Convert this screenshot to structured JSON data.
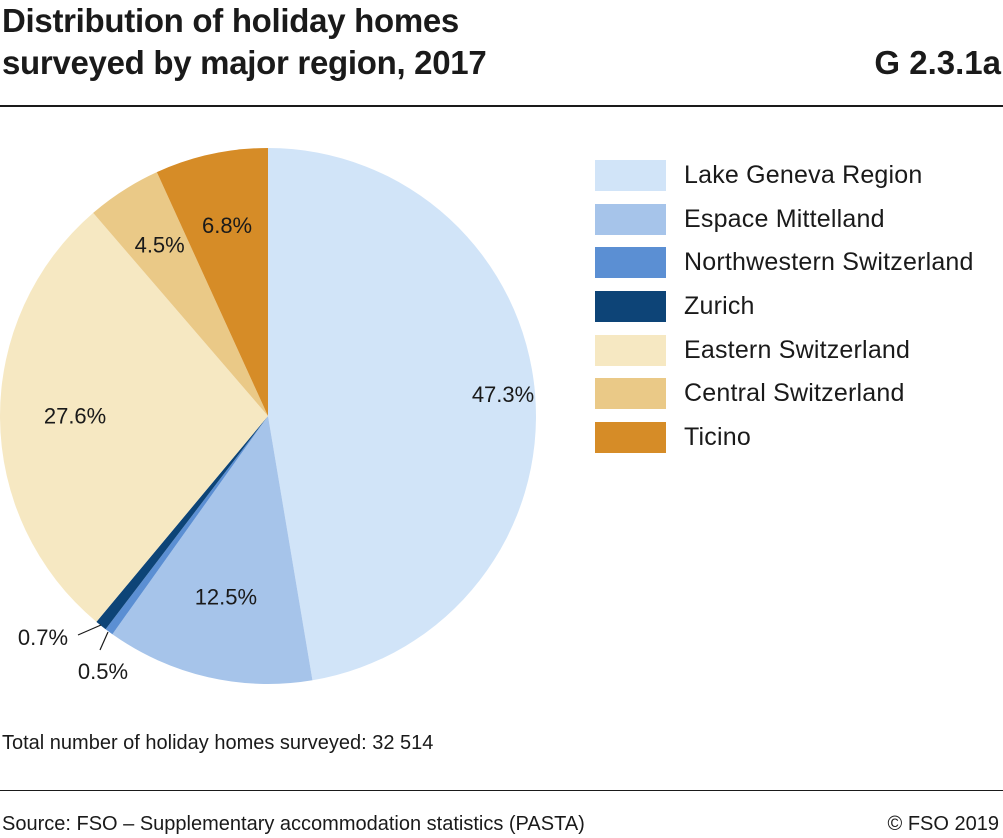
{
  "header": {
    "title_line1": "Distribution of holiday homes",
    "title_line2": "surveyed by major region, 2017",
    "code": "G 2.3.1a"
  },
  "chart_data": {
    "type": "pie",
    "title": "Distribution of holiday homes surveyed by major region, 2017",
    "categories": [
      "Lake Geneva Region",
      "Espace Mittelland",
      "Northwestern Switzerland",
      "Zurich",
      "Eastern Switzerland",
      "Central Switzerland",
      "Ticino"
    ],
    "values": [
      47.3,
      12.5,
      0.5,
      0.7,
      27.6,
      4.5,
      6.8
    ],
    "value_labels": [
      "47.3%",
      "12.5%",
      "0.5%",
      "0.7%",
      "27.6%",
      "4.5%",
      "6.8%"
    ],
    "colors": [
      "#d1e4f8",
      "#a6c4ea",
      "#5b8fd3",
      "#0d4477",
      "#f6e8c2",
      "#eac987",
      "#d68c27"
    ],
    "legend_position": "right"
  },
  "footer": {
    "note": "Total number of holiday homes surveyed: 32 514",
    "source": "Source: FSO – Supplementary accommodation statistics (PASTA)",
    "copyright": "© FSO 2019"
  }
}
